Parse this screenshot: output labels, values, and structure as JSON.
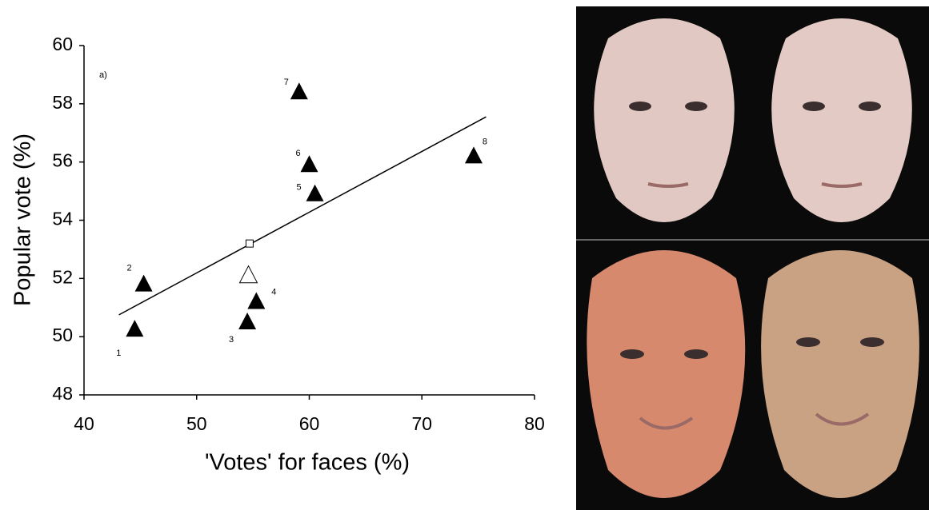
{
  "chart_data": {
    "type": "scatter",
    "annotation": "a)",
    "xlabel": "'Votes' for faces (%)",
    "ylabel": "Popular vote (%)",
    "x": [
      44.5,
      45.3,
      54.5,
      55.3,
      60.5,
      60.0,
      59.1,
      74.6
    ],
    "values": [
      50.25,
      51.8,
      50.5,
      51.2,
      54.9,
      55.9,
      58.4,
      56.2
    ],
    "point_labels": [
      "1",
      "2",
      "3",
      "4",
      "5",
      "6",
      "7",
      "8"
    ],
    "color": "#000000",
    "marker": "triangle",
    "open_points": [
      {
        "x": 54.6,
        "y": 52.1,
        "marker": "triangle"
      },
      {
        "x": 54.7,
        "y": 53.2,
        "marker": "square"
      }
    ],
    "trendline": {
      "x": [
        43.1,
        75.7
      ],
      "y": [
        50.75,
        57.55
      ]
    },
    "xlim": [
      40,
      80
    ],
    "xticks": [
      40,
      50,
      60,
      70,
      80
    ],
    "ylim": [
      48,
      60
    ],
    "yticks": [
      48,
      50,
      52,
      54,
      56,
      58,
      60
    ]
  }
}
